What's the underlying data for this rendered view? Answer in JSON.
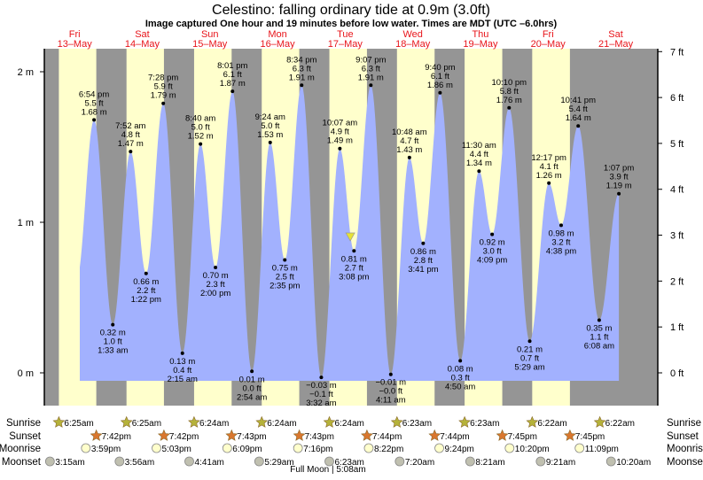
{
  "chart_data": {
    "type": "area",
    "title": "Celestino: falling  ordinary tide at 0.9m (3.0ft)",
    "subtitle": "Image captured One hour and 19 minutes before low water. Times are MDT (UTC –6.0hrs)",
    "current": {
      "day": 4,
      "time": "1:49pm",
      "height_m": 0.9
    },
    "days": [
      {
        "name": "Fri",
        "date": "13–May"
      },
      {
        "name": "Sat",
        "date": "14–May"
      },
      {
        "name": "Sun",
        "date": "15–May"
      },
      {
        "name": "Mon",
        "date": "16–May"
      },
      {
        "name": "Tue",
        "date": "17–May"
      },
      {
        "name": "Wed",
        "date": "18–May"
      },
      {
        "name": "Thu",
        "date": "19–May"
      },
      {
        "name": "Fri",
        "date": "20–May"
      },
      {
        "name": "Sat",
        "date": "21–May"
      }
    ],
    "left_axis": {
      "unit": "m",
      "ylim": [
        -0.2,
        2.15
      ],
      "ticks": [
        "0 m",
        "1 m",
        "2 m"
      ],
      "tick_values": [
        0,
        1,
        2
      ]
    },
    "right_axis": {
      "unit": "ft",
      "ticks": [
        "0 ft",
        "1 ft",
        "2 ft",
        "3 ft",
        "4 ft",
        "5 ft",
        "6 ft",
        "7 ft"
      ],
      "tick_values": [
        0,
        1,
        2,
        3,
        4,
        5,
        6,
        7
      ]
    },
    "tides": [
      {
        "day": 0,
        "type": "high",
        "time": "6:54 pm",
        "ft": "5.5 ft",
        "m": "1.68 m",
        "value": 1.68
      },
      {
        "day": 1,
        "type": "low",
        "time": "1:33 am",
        "ft": "1.0 ft",
        "m": "0.32 m",
        "value": 0.32
      },
      {
        "day": 1,
        "type": "high",
        "time": "7:52 am",
        "ft": "4.8 ft",
        "m": "1.47 m",
        "value": 1.47
      },
      {
        "day": 1,
        "type": "low",
        "time": "1:22 pm",
        "ft": "2.2 ft",
        "m": "0.66 m",
        "value": 0.66
      },
      {
        "day": 1,
        "type": "high",
        "time": "7:28 pm",
        "ft": "5.9 ft",
        "m": "1.79 m",
        "value": 1.79
      },
      {
        "day": 2,
        "type": "low",
        "time": "2:15 am",
        "ft": "0.4 ft",
        "m": "0.13 m",
        "value": 0.13
      },
      {
        "day": 2,
        "type": "high",
        "time": "8:40 am",
        "ft": "5.0 ft",
        "m": "1.52 m",
        "value": 1.52
      },
      {
        "day": 2,
        "type": "low",
        "time": "2:00 pm",
        "ft": "2.3 ft",
        "m": "0.70 m",
        "value": 0.7
      },
      {
        "day": 2,
        "type": "high",
        "time": "8:01 pm",
        "ft": "6.1 ft",
        "m": "1.87 m",
        "value": 1.87
      },
      {
        "day": 3,
        "type": "low",
        "time": "2:54 am",
        "ft": "0.0 ft",
        "m": "0.01 m",
        "value": 0.01
      },
      {
        "day": 3,
        "type": "high",
        "time": "9:24 am",
        "ft": "5.0 ft",
        "m": "1.53 m",
        "value": 1.53
      },
      {
        "day": 3,
        "type": "low",
        "time": "2:35 pm",
        "ft": "2.5 ft",
        "m": "0.75 m",
        "value": 0.75
      },
      {
        "day": 3,
        "type": "high",
        "time": "8:34 pm",
        "ft": "6.3 ft",
        "m": "1.91 m",
        "value": 1.91
      },
      {
        "day": 4,
        "type": "low",
        "time": "3:32 am",
        "ft": "−0.1 ft",
        "m": "−0.03 m",
        "value": -0.03
      },
      {
        "day": 4,
        "type": "high",
        "time": "10:07 am",
        "ft": "4.9 ft",
        "m": "1.49 m",
        "value": 1.49
      },
      {
        "day": 4,
        "type": "low",
        "time": "3:08 pm",
        "ft": "2.7 ft",
        "m": "0.81 m",
        "value": 0.81
      },
      {
        "day": 4,
        "type": "high",
        "time": "9:07 pm",
        "ft": "6.3 ft",
        "m": "1.91 m",
        "value": 1.91
      },
      {
        "day": 5,
        "type": "low",
        "time": "4:11 am",
        "ft": "−0.0 ft",
        "m": "−0.01 m",
        "value": -0.01
      },
      {
        "day": 5,
        "type": "high",
        "time": "10:48 am",
        "ft": "4.7 ft",
        "m": "1.43 m",
        "value": 1.43
      },
      {
        "day": 5,
        "type": "low",
        "time": "3:41 pm",
        "ft": "2.8 ft",
        "m": "0.86 m",
        "value": 0.86
      },
      {
        "day": 5,
        "type": "high",
        "time": "9:40 pm",
        "ft": "6.1 ft",
        "m": "1.86 m",
        "value": 1.86
      },
      {
        "day": 6,
        "type": "low",
        "time": "4:50 am",
        "ft": "0.3 ft",
        "m": "0.08 m",
        "value": 0.08
      },
      {
        "day": 6,
        "type": "high",
        "time": "11:30 am",
        "ft": "4.4 ft",
        "m": "1.34 m",
        "value": 1.34
      },
      {
        "day": 6,
        "type": "low",
        "time": "4:09 pm",
        "ft": "3.0 ft",
        "m": "0.92 m",
        "value": 0.92
      },
      {
        "day": 6,
        "type": "high",
        "time": "10:10 pm",
        "ft": "5.8 ft",
        "m": "1.76 m",
        "value": 1.76
      },
      {
        "day": 7,
        "type": "low",
        "time": "5:29 am",
        "ft": "0.7 ft",
        "m": "0.21 m",
        "value": 0.21
      },
      {
        "day": 7,
        "type": "high",
        "time": "12:17 pm",
        "ft": "4.1 ft",
        "m": "1.26 m",
        "value": 1.26
      },
      {
        "day": 7,
        "type": "low",
        "time": "4:38 pm",
        "ft": "3.2 ft",
        "m": "0.98 m",
        "value": 0.98
      },
      {
        "day": 7,
        "type": "high",
        "time": "10:41 pm",
        "ft": "5.4 ft",
        "m": "1.64 m",
        "value": 1.64
      },
      {
        "day": 8,
        "type": "low",
        "time": "6:08 am",
        "ft": "1.1 ft",
        "m": "0.35 m",
        "value": 0.35
      },
      {
        "day": 8,
        "type": "high",
        "time": "1:07 pm",
        "ft": "3.9 ft",
        "m": "1.19 m",
        "value": 1.19
      }
    ],
    "rows": {
      "sunrise": {
        "label": "Sunrise",
        "color": "#b5b23a",
        "times": [
          "6:25am",
          "6:25am",
          "6:24am",
          "6:24am",
          "6:24am",
          "6:23am",
          "6:23am",
          "6:22am",
          "6:22am"
        ],
        "days": [
          0,
          1,
          2,
          3,
          4,
          5,
          6,
          7,
          8
        ]
      },
      "sunset": {
        "label": "Sunset",
        "color": "#d9772e",
        "times": [
          "7:42pm",
          "7:42pm",
          "7:43pm",
          "7:43pm",
          "7:44pm",
          "7:44pm",
          "7:45pm",
          "7:45pm"
        ],
        "days": [
          0,
          1,
          2,
          3,
          4,
          5,
          6,
          7
        ]
      },
      "moonrise": {
        "label": "Moonrise",
        "color": "#ffffcc",
        "times": [
          "3:59pm",
          "5:03pm",
          "6:09pm",
          "7:16pm",
          "8:22pm",
          "9:24pm",
          "10:20pm",
          "11:09pm"
        ],
        "days": [
          0,
          1,
          2,
          3,
          4,
          5,
          6,
          7
        ]
      },
      "moonset": {
        "label": "Moonset",
        "color": "#c0c0b0",
        "times": [
          "3:15am",
          "3:56am",
          "4:41am",
          "5:29am",
          "6:23am",
          "7:20am",
          "8:21am",
          "9:21am",
          "10:20am"
        ],
        "days": [
          0,
          1,
          2,
          3,
          4,
          5,
          6,
          7,
          8
        ]
      }
    },
    "footer": "Full Moon | 5:08am",
    "colors": {
      "night": "#959595",
      "day": "#ffffcc",
      "water": "#a2b1fe",
      "day_label": "#e8141a",
      "marker": "#e6e234"
    }
  }
}
